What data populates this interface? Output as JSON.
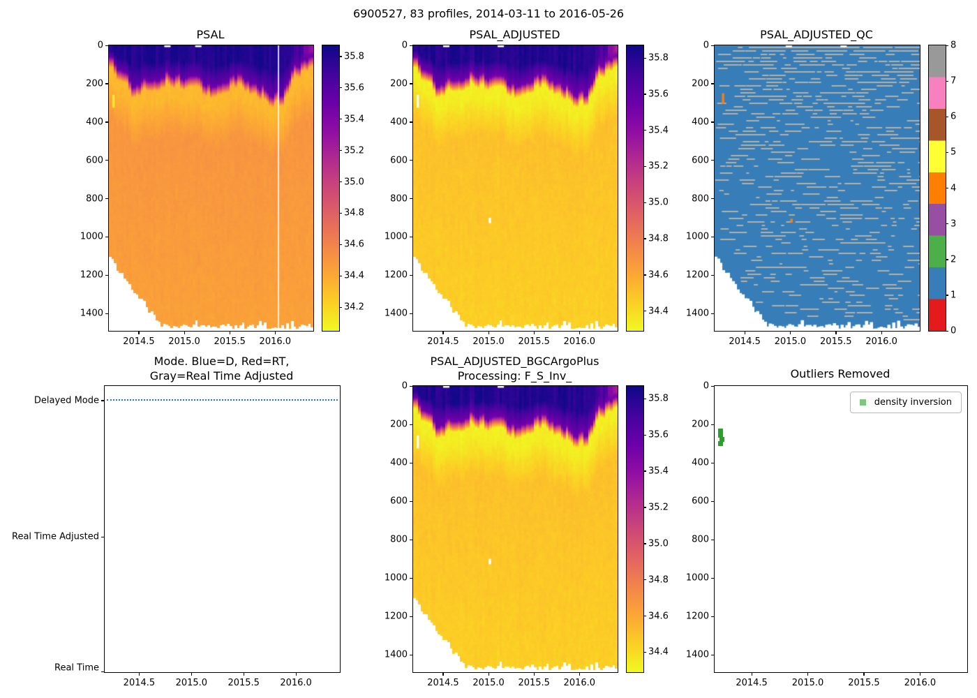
{
  "figure": {
    "suptitle": "6900527, 83 profiles, 2014-03-11 to 2016-05-26",
    "platform_id": "6900527",
    "profile_count": 83,
    "date_start": "2014-03-11",
    "date_end": "2016-05-26",
    "background": "#ffffff"
  },
  "time_axis": {
    "range": [
      2014.17,
      2016.42
    ],
    "ticks": [
      2014.5,
      2015.0,
      2015.5,
      2016.0
    ],
    "tick_labels": [
      "2014.5",
      "2015.0",
      "2015.5",
      "2016.0"
    ]
  },
  "depth_axis": {
    "range": [
      0,
      1490
    ],
    "ticks": [
      0,
      200,
      400,
      600,
      800,
      1000,
      1200,
      1400
    ],
    "tick_labels": [
      "0",
      "200",
      "400",
      "600",
      "800",
      "1000",
      "1200",
      "1400"
    ]
  },
  "colormap_plasma": [
    [
      0.0,
      "#0d0887"
    ],
    [
      0.1,
      "#41049d"
    ],
    [
      0.2,
      "#6a00a8"
    ],
    [
      0.3,
      "#8f0da4"
    ],
    [
      0.4,
      "#b12a90"
    ],
    [
      0.5,
      "#cc4778"
    ],
    [
      0.6,
      "#e16462"
    ],
    [
      0.7,
      "#f2844b"
    ],
    [
      0.8,
      "#fca636"
    ],
    [
      0.9,
      "#fcce25"
    ],
    [
      1.0,
      "#f0f921"
    ]
  ],
  "qc_palette_bottom_to_top": [
    "#e41a1c",
    "#377eb8",
    "#4daf4a",
    "#984ea3",
    "#ff7f00",
    "#ffff33",
    "#a65628",
    "#f781bf",
    "#999999"
  ],
  "panels": [
    {
      "title": "PSAL",
      "colorbar_tick_labels": [
        "35.8",
        "35.6",
        "35.4",
        "35.2",
        "35.0",
        "34.8",
        "34.6",
        "34.4",
        "34.2"
      ]
    },
    {
      "title": "PSAL_ADJUSTED",
      "colorbar_tick_labels": [
        "35.8",
        "35.6",
        "35.4",
        "35.2",
        "35.0",
        "34.8",
        "34.6",
        "34.4"
      ]
    },
    {
      "title": "PSAL_ADJUSTED_QC",
      "colorbar_tick_labels": [
        "8",
        "7",
        "6",
        "5",
        "4",
        "3",
        "2",
        "1",
        "0"
      ]
    },
    {
      "title": "Mode. Blue=D, Red=RT,\nGray=Real Time Adjusted",
      "categories": [
        "Delayed Mode",
        "Real Time Adjusted",
        "Real Time"
      ]
    },
    {
      "title": "PSAL_ADJUSTED_BGCArgoPlus\nProcessing: F_S_Inv_",
      "colorbar_tick_labels": [
        "35.8",
        "35.6",
        "35.4",
        "35.2",
        "35.0",
        "34.8",
        "34.6",
        "34.4"
      ]
    },
    {
      "title": "Outliers Removed",
      "legend_label": "density inversion"
    }
  ],
  "chart_data": [
    {
      "panel": "PSAL",
      "type": "heatmap",
      "x": "time (decimal year)",
      "y": "pressure (dbar)",
      "x_range": [
        2014.19,
        2016.4
      ],
      "y_range": [
        0,
        1490
      ],
      "x_ticks": [
        2014.5,
        2015.0,
        2015.5,
        2016.0
      ],
      "y_ticks": [
        0,
        200,
        400,
        600,
        800,
        1000,
        1200,
        1400
      ],
      "n_profiles": 83,
      "colormap": "plasma_r",
      "value_range": [
        34.05,
        35.87
      ],
      "colorbar_ticks": [
        35.8,
        35.6,
        35.4,
        35.2,
        35.0,
        34.8,
        34.6,
        34.4,
        34.2
      ],
      "representative_profile": {
        "pressure_dbar": [
          0,
          50,
          100,
          150,
          200,
          250,
          300,
          400,
          600,
          800,
          1000,
          1200,
          1480
        ],
        "psal_psu": [
          35.82,
          35.8,
          35.7,
          35.3,
          34.6,
          34.34,
          34.36,
          34.48,
          34.52,
          34.5,
          34.49,
          34.47,
          34.44
        ]
      },
      "surface_layer_depth_curve": {
        "time_fraction": [
          0.0,
          0.12,
          0.28,
          0.41,
          0.52,
          0.63,
          0.75,
          0.84,
          0.9,
          1.0
        ],
        "depth_dbar": [
          60,
          215,
          140,
          185,
          225,
          150,
          195,
          255,
          130,
          55
        ]
      },
      "marks": {
        "white_vline_time": 2016.03,
        "fresh_streak": {
          "profile": 2,
          "pressure": [
            258,
            325
          ],
          "approx_value": 34.1
        },
        "surface_gap_times": [
          2014.78,
          2015.12
        ]
      },
      "features": [
        "salty surface layer ~35.8 with seasonally varying thickness 60-260 dbar",
        "salinity-minimum band ~34.33 just below the surface layer",
        "near-uniform ~34.5 below 400 dbar",
        "no-data wedge lower-left: earliest profiles stop near 1150 dbar",
        "ragged white profile bottoms near 1450-1480 dbar"
      ]
    },
    {
      "panel": "PSAL_ADJUSTED",
      "type": "heatmap",
      "x_range": [
        2014.19,
        2016.4
      ],
      "y_range": [
        0,
        1490
      ],
      "n_profiles": 83,
      "colormap": "plasma_r",
      "value_range": [
        34.29,
        35.87
      ],
      "colorbar_ticks": [
        35.8,
        35.6,
        35.4,
        35.2,
        35.0,
        34.8,
        34.6,
        34.4
      ],
      "marks": {
        "white_streak": {
          "profile": 2,
          "pressure": [
            258,
            325
          ]
        },
        "white_dot": {
          "time": 2015.0,
          "pressure": [
            900,
            928
          ]
        },
        "surface_gap_times": [
          2014.5,
          2015.1
        ]
      },
      "features": [
        "same field as PSAL but bad values blanked (white)"
      ]
    },
    {
      "panel": "PSAL_ADJUSTED_QC",
      "type": "heatmap",
      "x_range": [
        2014.19,
        2016.4
      ],
      "y_range": [
        0,
        1490
      ],
      "n_profiles": 83,
      "colormap": "Set1 discrete 0-8",
      "value_range": [
        0,
        8
      ],
      "colorbar_ticks": [
        8,
        7,
        6,
        5,
        4,
        3,
        2,
        1,
        0
      ],
      "qc_colors": {
        "0": "#e41a1c",
        "1": "#377eb8",
        "2": "#4daf4a",
        "3": "#984ea3",
        "4": "#ff7f00",
        "5": "#ffff33",
        "6": "#a65628",
        "7": "#f781bf",
        "8": "#999999"
      },
      "dominant_value": 1,
      "flagged_points": [
        {
          "time": 2014.25,
          "pressure": [
            250,
            305
          ],
          "qc": 4
        },
        {
          "time": 2015.0,
          "pressure": [
            905,
            925
          ],
          "qc": 4
        }
      ],
      "missing_data": "scattered short gray horizontal dashes throughout, denser above 600 dbar"
    },
    {
      "panel": "Mode",
      "type": "line",
      "x_range": [
        2014.19,
        2016.4
      ],
      "categories": [
        "Delayed Mode",
        "Real Time Adjusted",
        "Real Time"
      ],
      "series": [
        {
          "name": "processing mode",
          "style": "dotted",
          "color": "#1f77b4",
          "value": "Delayed Mode",
          "note": "all 83 profiles are Delayed Mode"
        }
      ]
    },
    {
      "panel": "PSAL_ADJUSTED_BGCArgoPlus Processing: F_S_Inv_",
      "type": "heatmap",
      "x_range": [
        2014.19,
        2016.4
      ],
      "y_range": [
        0,
        1490
      ],
      "n_profiles": 83,
      "colormap": "plasma_r",
      "value_range": [
        34.29,
        35.87
      ],
      "colorbar_ticks": [
        35.8,
        35.6,
        35.4,
        35.2,
        35.0,
        34.8,
        34.6,
        34.4
      ],
      "marks": {
        "white_streak": {
          "profile": 2,
          "pressure": [
            258,
            325
          ]
        },
        "white_dot": {
          "time": 2015.0,
          "pressure": [
            900,
            928
          ]
        },
        "surface_gap_times": [
          2014.5,
          2015.1
        ]
      },
      "features": [
        "essentially identical to PSAL_ADJUSTED"
      ]
    },
    {
      "panel": "Outliers Removed",
      "type": "scatter",
      "x_range": [
        2014.19,
        2016.4
      ],
      "y_range": [
        0,
        1490
      ],
      "legend": [
        {
          "label": "density inversion",
          "color": "#2ca02c",
          "marker": "square"
        }
      ],
      "points": [
        {
          "time": 2014.22,
          "pressure": 232
        },
        {
          "time": 2014.22,
          "pressure": 254
        },
        {
          "time": 2014.23,
          "pressure": 276
        },
        {
          "time": 2014.22,
          "pressure": 298
        }
      ]
    }
  ]
}
